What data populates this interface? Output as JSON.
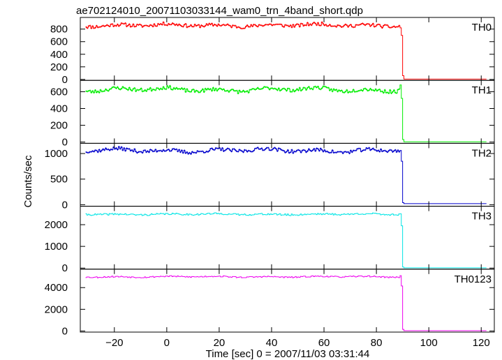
{
  "chart_data": {
    "type": "line",
    "title": "ae702124010_20071103033144_wam0_trn_4band_short.qdp",
    "xlabel": "Time [sec] 0 = 2007/11/03 03:31:44",
    "ylabel": "Counts/sec",
    "xlim": [
      -33,
      125
    ],
    "x_ticks": [
      -20,
      0,
      20,
      40,
      60,
      80,
      100,
      120
    ],
    "x_tick_labels": [
      "−20",
      "0",
      "20",
      "40",
      "60",
      "80",
      "100",
      "120"
    ],
    "bin_width": 0.5,
    "drop_time": 90,
    "grid": false,
    "legend": "none",
    "series": [
      {
        "name": "TH0",
        "color": "#ff0000",
        "level": 860,
        "noise": 28,
        "wobble": 25,
        "transition": [
          820,
          700,
          60
        ],
        "after": 5,
        "seed": 11,
        "ylim": [
          -15,
          985
        ],
        "yticks": [
          0,
          200,
          400,
          600,
          800
        ]
      },
      {
        "name": "TH1",
        "color": "#00ee00",
        "level": 625,
        "noise": 22,
        "wobble": 28,
        "transition": [
          680,
          520,
          30
        ],
        "after": 3,
        "seed": 23,
        "ylim": [
          -15,
          735
        ],
        "yticks": [
          0,
          200,
          400,
          600
        ]
      },
      {
        "name": "TH2",
        "color": "#0000cc",
        "level": 1060,
        "noise": 35,
        "wobble": 40,
        "transition": [
          1060,
          850,
          40
        ],
        "after": 20,
        "seed": 37,
        "ylim": [
          -30,
          1200
        ],
        "yticks": [
          0,
          500,
          1000
        ]
      },
      {
        "name": "TH3",
        "color": "#00e5e5",
        "level": 2480,
        "noise": 40,
        "wobble": 30,
        "transition": [
          2500,
          1950,
          50
        ],
        "after": 10,
        "seed": 41,
        "ylim": [
          -50,
          2850
        ],
        "yticks": [
          0,
          1000,
          2000
        ]
      },
      {
        "name": "TH0123",
        "color": "#ee00ee",
        "level": 5000,
        "noise": 60,
        "wobble": 60,
        "transition": [
          5100,
          4150,
          150
        ],
        "after": 25,
        "seed": 53,
        "ylim": [
          -100,
          5700
        ],
        "yticks": [
          0,
          2000,
          4000
        ]
      }
    ]
  }
}
